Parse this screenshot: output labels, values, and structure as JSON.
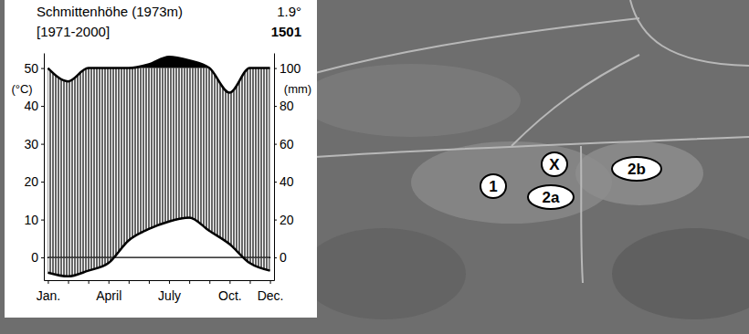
{
  "chart_data": {
    "type": "climate",
    "title": "Schmittenhöhe (1973m)",
    "subtitle": "[1971-2000]",
    "annotations": [
      "1.9°",
      "1501"
    ],
    "categories": [
      "Jan.",
      null,
      null,
      "April",
      null,
      null,
      "July",
      null,
      null,
      "Oct.",
      null,
      "Dec."
    ],
    "series": [
      {
        "type": "line",
        "color": "#000000",
        "values": [
          -4,
          -5,
          -3.5,
          -1.5,
          4.5,
          7.5,
          9.5,
          10.5,
          7,
          3.5,
          -1.5,
          -3.5
        ]
      },
      {
        "type": "line",
        "color": "#000000",
        "axis": "y2",
        "values": [
          100,
          93,
          100,
          100,
          100,
          102,
          106,
          104,
          100,
          87,
          100,
          100
        ]
      }
    ],
    "y_label": "(°C)",
    "y2_label": "(mm)",
    "ylim": [
      -6,
      54
    ],
    "yticks": [
      0,
      10,
      20,
      30,
      40,
      50
    ],
    "y2lim": [
      -12,
      108
    ],
    "y2ticks": [
      0,
      20,
      40,
      60,
      80,
      100
    ]
  },
  "photo_labels": [
    "1",
    "X",
    "2a",
    "2b"
  ]
}
